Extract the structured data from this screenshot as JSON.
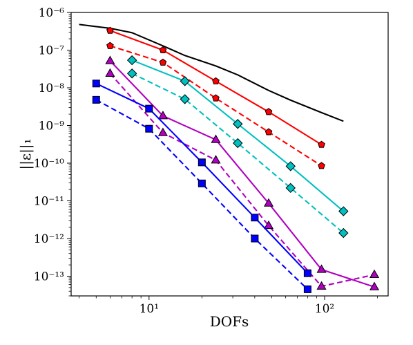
{
  "chart_data": {
    "type": "line",
    "title": "",
    "xlabel": "DOFs",
    "ylabel": "||ε||₁",
    "xscale": "log",
    "yscale": "log",
    "xlim": [
      3.6,
      230
    ],
    "ylim": [
      3e-14,
      1e-06
    ],
    "x_ticks": [
      {
        "value": 10,
        "label": "10¹"
      },
      {
        "value": 100,
        "label": "10²"
      }
    ],
    "y_ticks": [
      {
        "value": 1e-06,
        "label": "10⁻⁶"
      },
      {
        "value": 1e-07,
        "label": "10⁻⁷"
      },
      {
        "value": 1e-08,
        "label": "10⁻⁸"
      },
      {
        "value": 1e-09,
        "label": "10⁻⁹"
      },
      {
        "value": 1e-10,
        "label": "10⁻¹⁰"
      },
      {
        "value": 1e-11,
        "label": "10⁻¹¹"
      },
      {
        "value": 1e-12,
        "label": "10⁻¹²"
      },
      {
        "value": 1e-13,
        "label": "10⁻¹³"
      }
    ],
    "grid": false,
    "legend": "none",
    "series": [
      {
        "color": "#000000",
        "line": "solid",
        "marker": "none",
        "x": [
          4,
          6,
          8,
          12,
          16,
          24,
          32,
          48,
          64,
          96,
          128
        ],
        "y": [
          4.8e-07,
          3.8e-07,
          2.9e-07,
          1.3e-07,
          7.2e-08,
          3.8e-08,
          2.2e-08,
          8.5e-09,
          4.7e-09,
          2.2e-09,
          1.3e-09
        ]
      },
      {
        "color": "#ff0000",
        "line": "solid",
        "marker": "pentagon",
        "x": [
          6,
          12,
          24,
          48,
          96
        ],
        "y": [
          3.3e-07,
          1e-07,
          1.5e-08,
          2.3e-09,
          3.1e-10
        ]
      },
      {
        "color": "#ff0000",
        "line": "dashed",
        "marker": "pentagon",
        "x": [
          6,
          12,
          24,
          48,
          96
        ],
        "y": [
          1.3e-07,
          4.7e-08,
          5.3e-09,
          6.7e-10,
          8.5e-11
        ]
      },
      {
        "color": "#00c0c0",
        "line": "solid",
        "marker": "diamond",
        "x": [
          8,
          16,
          32,
          64,
          128
        ],
        "y": [
          5.4e-08,
          1.5e-08,
          1.1e-09,
          8.3e-11,
          5.3e-12
        ]
      },
      {
        "color": "#00c0c0",
        "line": "dashed",
        "marker": "diamond",
        "x": [
          8,
          16,
          32,
          64,
          128
        ],
        "y": [
          2.4e-08,
          5e-09,
          3.4e-10,
          2.2e-11,
          1.4e-12
        ]
      },
      {
        "color": "#b000c0",
        "line": "solid",
        "marker": "triangle",
        "x": [
          6,
          12,
          24,
          48,
          96,
          192
        ],
        "y": [
          5.2e-08,
          1.8e-09,
          4.2e-10,
          8.6e-12,
          1.5e-13,
          5.2e-14
        ]
      },
      {
        "color": "#b000c0",
        "line": "dashed",
        "marker": "triangle",
        "x": [
          6,
          12,
          24,
          48,
          96,
          192
        ],
        "y": [
          2.4e-08,
          6.4e-10,
          1.2e-10,
          2.2e-12,
          5.4e-14,
          1.1e-13
        ]
      },
      {
        "color": "#0000ff",
        "line": "solid",
        "marker": "square",
        "x": [
          5,
          10,
          20,
          40,
          80
        ],
        "y": [
          1.3e-08,
          2.8e-09,
          1.05e-10,
          3.6e-12,
          1.2e-13
        ]
      },
      {
        "color": "#0000ff",
        "line": "dashed",
        "marker": "square",
        "x": [
          5,
          10,
          20,
          40,
          80
        ],
        "y": [
          4.8e-09,
          8.2e-10,
          2.9e-11,
          1e-12,
          4.5e-14
        ]
      }
    ]
  }
}
